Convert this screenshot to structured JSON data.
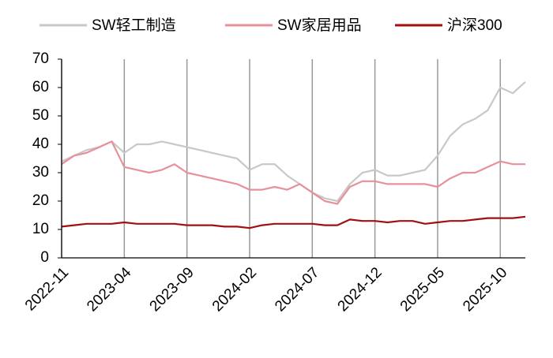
{
  "chart_data": {
    "type": "line",
    "x": [
      "2022-11",
      "2022-12",
      "2023-01",
      "2023-02",
      "2023-03",
      "2023-04",
      "2023-05",
      "2023-06",
      "2023-07",
      "2023-08",
      "2023-09",
      "2023-10",
      "2023-11",
      "2023-12",
      "2024-01",
      "2024-02",
      "2024-03",
      "2024-04",
      "2024-05",
      "2024-06",
      "2024-07",
      "2024-08",
      "2024-09",
      "2024-10",
      "2024-11",
      "2024-12",
      "2025-01",
      "2025-02",
      "2025-03",
      "2025-04",
      "2025-05",
      "2025-06",
      "2025-07",
      "2025-08",
      "2025-09",
      "2025-10",
      "2025-11",
      "2025-12"
    ],
    "series": [
      {
        "name": "SW轻工制造",
        "color": "#c8c8c8",
        "values": [
          34,
          36,
          38,
          39,
          41,
          37,
          40,
          40,
          41,
          40,
          39,
          38,
          37,
          36,
          35,
          31,
          33,
          33,
          29,
          26,
          23,
          21,
          20,
          26,
          30,
          31,
          29,
          29,
          30,
          31,
          36,
          43,
          47,
          49,
          52,
          60,
          58,
          62
        ]
      },
      {
        "name": "SW家居用品",
        "color": "#e8909a",
        "values": [
          33,
          36,
          37,
          39,
          41,
          32,
          31,
          30,
          31,
          33,
          30,
          29,
          28,
          27,
          26,
          24,
          24,
          25,
          24,
          26,
          23,
          20,
          19,
          25,
          27,
          27,
          26,
          26,
          26,
          26,
          25,
          28,
          30,
          30,
          32,
          34,
          33,
          33
        ]
      },
      {
        "name": "沪深300",
        "color": "#a01010",
        "values": [
          11,
          11.5,
          12,
          12,
          12,
          12.5,
          12,
          12,
          12,
          12,
          11.5,
          11.5,
          11.5,
          11,
          11,
          10.5,
          11.5,
          12,
          12,
          12,
          12,
          11.5,
          11.5,
          13.5,
          13,
          13,
          12.5,
          13,
          13,
          12,
          12.5,
          13,
          13,
          13.5,
          14,
          14,
          14,
          14.5
        ]
      }
    ],
    "xlim": [
      "2022-11",
      "2025-12"
    ],
    "xticks": [
      "2022-11",
      "2023-04",
      "2023-09",
      "2024-02",
      "2024-07",
      "2024-12",
      "2025-05",
      "2025-10"
    ],
    "ylim": [
      0,
      70
    ],
    "yticks": [
      0,
      10,
      20,
      30,
      40,
      50,
      60,
      70
    ],
    "grid": true
  }
}
